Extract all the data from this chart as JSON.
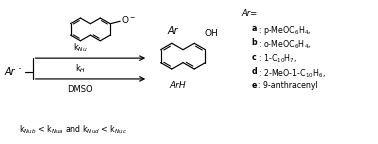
{
  "bg_color": "#ffffff",
  "fig_width": 3.78,
  "fig_height": 1.44,
  "dpi": 100,
  "bottom_text": "k$_{Nub}$ < k$_{Nua}$ and k$_{Nud}$ < k$_{Nuc}$",
  "kNu_label": "k$_{Nu}$",
  "kH_label": "k$_{H}$",
  "DMSO_label": "DMSO",
  "product_label": "ArH",
  "ar_entries": [
    {
      "bold": "a",
      "text": ": p-MeOC$_6$H$_4$,"
    },
    {
      "bold": "b",
      "text": ": o-MeOC$_6$H$_4$,"
    },
    {
      "bold": "c",
      "text": ": 1-C$_{10}$H$_7$,"
    },
    {
      "bold": "d",
      "text": ": 2-MeO-1-C$_{10}$H$_6$,"
    },
    {
      "bold": "e",
      "text": ": 9-anthracenyl"
    }
  ],
  "lw": 0.85,
  "fs": 6.0
}
